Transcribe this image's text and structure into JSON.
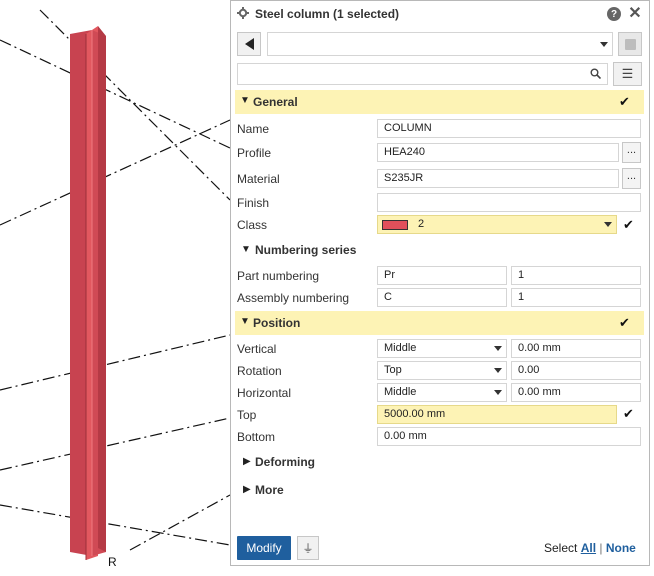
{
  "panel": {
    "title": "Steel column (1 selected)",
    "icons": {
      "settings": "gear-icon",
      "help": "help-icon",
      "close": "close-icon",
      "back": "back-arrow-icon",
      "save": "save-icon",
      "search": "search-icon",
      "menu": "menu-icon"
    },
    "preset_value": "",
    "search_value": ""
  },
  "general": {
    "title": "General",
    "name_label": "Name",
    "name_value": "COLUMN",
    "profile_label": "Profile",
    "profile_value": "HEA240",
    "material_label": "Material",
    "material_value": "S235JR",
    "finish_label": "Finish",
    "finish_value": "",
    "class_label": "Class",
    "class_value": "2",
    "class_color": "#e0505a",
    "ellipsis": "..."
  },
  "numbering": {
    "title": "Numbering series",
    "part_label": "Part numbering",
    "part_prefix": "Pr",
    "part_start": "1",
    "assembly_label": "Assembly numbering",
    "assembly_prefix": "C",
    "assembly_start": "1"
  },
  "position": {
    "title": "Position",
    "vertical_label": "Vertical",
    "vertical_value": "Middle",
    "vertical_offset": "0.00 mm",
    "rotation_label": "Rotation",
    "rotation_value": "Top",
    "rotation_offset": "0.00",
    "horizontal_label": "Horizontal",
    "horizontal_value": "Middle",
    "horizontal_offset": "0.00 mm",
    "top_label": "Top",
    "top_value": "5000.00 mm",
    "bottom_label": "Bottom",
    "bottom_value": "0.00 mm"
  },
  "deforming": {
    "title": "Deforming"
  },
  "more": {
    "title": "More"
  },
  "footer": {
    "modify_label": "Modify",
    "select_label": "Select",
    "all_label": "All",
    "separator": "|",
    "none_label": "None"
  },
  "colors": {
    "accent": "#1f5f9e",
    "highlight": "#fdf3b5",
    "column": "#d04a55"
  }
}
